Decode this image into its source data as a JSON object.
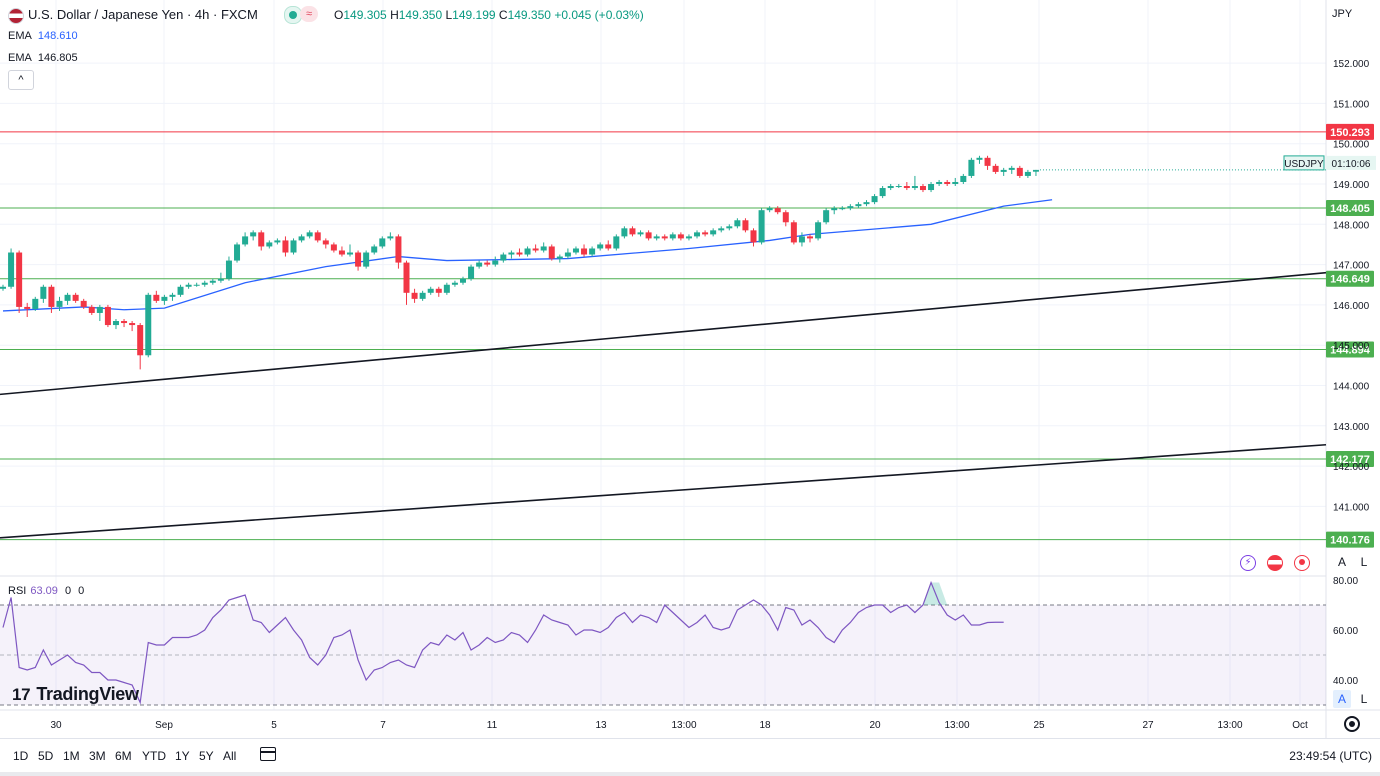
{
  "header": {
    "symbol_title": "U.S. Dollar / Japanese Yen · 4h · FXCM",
    "open_label": "O",
    "open": "149.305",
    "high_label": "H",
    "high": "149.350",
    "low_label": "L",
    "low": "149.199",
    "close_label": "C",
    "close": "149.350",
    "change": "+0.045 (+0.03%)",
    "wave_badge": "≈"
  },
  "indicators": {
    "ema1_label": "EMA",
    "ema1_value": "148.610",
    "ema2_label": "EMA",
    "ema2_value": "146.805",
    "collapse_glyph": "^",
    "rsi_label": "RSI",
    "rsi_value": "63.09",
    "rsi_extra1": "0",
    "rsi_extra2": "0"
  },
  "right_panel": {
    "currency": "JPY",
    "auto_label": "A",
    "log_label": "L"
  },
  "logo": {
    "text": "TradingView",
    "mark": "17"
  },
  "timeframes": [
    "1D",
    "5D",
    "1M",
    "3M",
    "6M",
    "YTD",
    "1Y",
    "5Y",
    "All"
  ],
  "clock": "23:49:54 (UTC)",
  "colors": {
    "up": "#22ab94",
    "down": "#f23645",
    "ema_fast": "#2962ff",
    "ema_slow": "#131722",
    "rsi": "#7e57c2",
    "support": "#4caf50",
    "resistance": "#f23645"
  },
  "chart_data": {
    "type": "candlestick",
    "symbol": "USDJPY",
    "countdown": "01:10:06",
    "last_price": 149.35,
    "price_axis": {
      "min": 139.5,
      "max": 153,
      "ticks": [
        152.0,
        151.0,
        150.0,
        149.0,
        148.0,
        147.0,
        146.0,
        145.0,
        144.0,
        143.0,
        142.0,
        141.0
      ]
    },
    "time_axis": [
      "30",
      "Sep",
      "5",
      "7",
      "11",
      "13",
      "13:00",
      "18",
      "20",
      "13:00",
      "25",
      "27",
      "13:00",
      "Oct"
    ],
    "horizontal_levels": [
      {
        "value": 150.293,
        "label": "150.293",
        "kind": "resistance"
      },
      {
        "value": 148.405,
        "label": "148.405",
        "kind": "support"
      },
      {
        "value": 146.649,
        "label": "146.649",
        "kind": "support"
      },
      {
        "value": 144.894,
        "label": "144.894",
        "kind": "support"
      },
      {
        "value": 142.177,
        "label": "142.177",
        "kind": "support"
      },
      {
        "value": 140.176,
        "label": "140.176",
        "kind": "support"
      }
    ],
    "trendlines": [
      {
        "name": "upper trendline",
        "from": [
          0,
          143.78
        ],
        "to": [
          163,
          146.8
        ]
      },
      {
        "name": "lower trendline",
        "from": [
          0,
          140.22
        ],
        "to": [
          163,
          142.53
        ]
      }
    ],
    "candles": [
      [
        146.4,
        146.5,
        146.35,
        146.45
      ],
      [
        146.45,
        147.4,
        146.4,
        147.3
      ],
      [
        147.3,
        147.35,
        145.8,
        145.95
      ],
      [
        145.95,
        146.05,
        145.7,
        145.9
      ],
      [
        145.9,
        146.2,
        145.85,
        146.15
      ],
      [
        146.15,
        146.5,
        146.05,
        146.45
      ],
      [
        146.45,
        146.5,
        145.8,
        145.95
      ],
      [
        145.95,
        146.2,
        145.85,
        146.1
      ],
      [
        146.1,
        146.3,
        146.0,
        146.25
      ],
      [
        146.25,
        146.3,
        146.05,
        146.1
      ],
      [
        146.1,
        146.15,
        145.9,
        145.95
      ],
      [
        145.95,
        146.0,
        145.75,
        145.8
      ],
      [
        145.8,
        146.0,
        145.6,
        145.95
      ],
      [
        145.95,
        146.0,
        145.45,
        145.5
      ],
      [
        145.5,
        145.65,
        145.4,
        145.6
      ],
      [
        145.6,
        145.65,
        145.45,
        145.55
      ],
      [
        145.55,
        145.6,
        145.35,
        145.5
      ],
      [
        145.5,
        145.55,
        144.4,
        144.75
      ],
      [
        144.75,
        146.3,
        144.7,
        146.25
      ],
      [
        146.25,
        146.35,
        146.05,
        146.1
      ],
      [
        146.1,
        146.25,
        146.0,
        146.2
      ],
      [
        146.2,
        146.3,
        146.1,
        146.25
      ],
      [
        146.25,
        146.5,
        146.2,
        146.45
      ],
      [
        146.45,
        146.55,
        146.4,
        146.5
      ],
      [
        146.5,
        146.55,
        146.45,
        146.5
      ],
      [
        146.5,
        146.6,
        146.45,
        146.55
      ],
      [
        146.55,
        146.65,
        146.5,
        146.6
      ],
      [
        146.6,
        146.8,
        146.55,
        146.65
      ],
      [
        146.65,
        147.2,
        146.6,
        147.1
      ],
      [
        147.1,
        147.55,
        147.05,
        147.5
      ],
      [
        147.5,
        147.8,
        147.45,
        147.7
      ],
      [
        147.7,
        147.85,
        147.6,
        147.8
      ],
      [
        147.8,
        147.85,
        147.35,
        147.45
      ],
      [
        147.45,
        147.6,
        147.4,
        147.55
      ],
      [
        147.55,
        147.65,
        147.5,
        147.6
      ],
      [
        147.6,
        147.7,
        147.2,
        147.3
      ],
      [
        147.3,
        147.65,
        147.25,
        147.6
      ],
      [
        147.6,
        147.75,
        147.55,
        147.7
      ],
      [
        147.7,
        147.85,
        147.65,
        147.8
      ],
      [
        147.8,
        147.85,
        147.55,
        147.6
      ],
      [
        147.6,
        147.65,
        147.4,
        147.5
      ],
      [
        147.5,
        147.55,
        147.3,
        147.35
      ],
      [
        147.35,
        147.45,
        147.2,
        147.25
      ],
      [
        147.25,
        147.5,
        147.2,
        147.3
      ],
      [
        147.3,
        147.35,
        146.85,
        146.95
      ],
      [
        146.95,
        147.35,
        146.9,
        147.3
      ],
      [
        147.3,
        147.5,
        147.25,
        147.45
      ],
      [
        147.45,
        147.7,
        147.4,
        147.65
      ],
      [
        147.65,
        147.8,
        147.6,
        147.7
      ],
      [
        147.7,
        147.75,
        146.9,
        147.05
      ],
      [
        147.05,
        147.1,
        146.0,
        146.3
      ],
      [
        146.3,
        146.4,
        146.05,
        146.15
      ],
      [
        146.15,
        146.35,
        146.1,
        146.3
      ],
      [
        146.3,
        146.45,
        146.25,
        146.4
      ],
      [
        146.4,
        146.45,
        146.2,
        146.3
      ],
      [
        146.3,
        146.55,
        146.25,
        146.5
      ],
      [
        146.5,
        146.6,
        146.45,
        146.55
      ],
      [
        146.55,
        146.7,
        146.5,
        146.65
      ],
      [
        146.65,
        147.0,
        146.6,
        146.95
      ],
      [
        146.95,
        147.1,
        146.9,
        147.05
      ],
      [
        147.05,
        147.1,
        146.95,
        147.0
      ],
      [
        147.0,
        147.2,
        146.95,
        147.1
      ],
      [
        147.1,
        147.3,
        147.05,
        147.25
      ],
      [
        147.25,
        147.35,
        147.15,
        147.3
      ],
      [
        147.3,
        147.4,
        147.2,
        147.25
      ],
      [
        147.25,
        147.45,
        147.2,
        147.4
      ],
      [
        147.4,
        147.5,
        147.3,
        147.35
      ],
      [
        147.35,
        147.55,
        147.3,
        147.45
      ],
      [
        147.45,
        147.5,
        147.1,
        147.15
      ],
      [
        147.15,
        147.25,
        147.05,
        147.2
      ],
      [
        147.2,
        147.4,
        147.15,
        147.3
      ],
      [
        147.3,
        147.45,
        147.25,
        147.4
      ],
      [
        147.4,
        147.5,
        147.2,
        147.25
      ],
      [
        147.25,
        147.45,
        147.2,
        147.4
      ],
      [
        147.4,
        147.55,
        147.35,
        147.5
      ],
      [
        147.5,
        147.6,
        147.35,
        147.4
      ],
      [
        147.4,
        147.75,
        147.35,
        147.7
      ],
      [
        147.7,
        147.95,
        147.65,
        147.9
      ],
      [
        147.9,
        147.95,
        147.7,
        147.75
      ],
      [
        147.75,
        147.85,
        147.7,
        147.8
      ],
      [
        147.8,
        147.85,
        147.6,
        147.65
      ],
      [
        147.65,
        147.75,
        147.6,
        147.7
      ],
      [
        147.7,
        147.75,
        147.6,
        147.65
      ],
      [
        147.65,
        147.8,
        147.6,
        147.75
      ],
      [
        147.75,
        147.8,
        147.6,
        147.65
      ],
      [
        147.65,
        147.75,
        147.6,
        147.7
      ],
      [
        147.7,
        147.85,
        147.65,
        147.8
      ],
      [
        147.8,
        147.85,
        147.7,
        147.75
      ],
      [
        147.75,
        147.9,
        147.7,
        147.85
      ],
      [
        147.85,
        147.95,
        147.8,
        147.9
      ],
      [
        147.9,
        148.0,
        147.85,
        147.95
      ],
      [
        147.95,
        148.15,
        147.9,
        148.1
      ],
      [
        148.1,
        148.15,
        147.8,
        147.85
      ],
      [
        147.85,
        147.9,
        147.45,
        147.55
      ],
      [
        147.55,
        148.4,
        147.5,
        148.35
      ],
      [
        148.35,
        148.45,
        148.3,
        148.4
      ],
      [
        148.4,
        148.45,
        148.25,
        148.3
      ],
      [
        148.3,
        148.35,
        147.95,
        148.05
      ],
      [
        148.05,
        148.1,
        147.5,
        147.55
      ],
      [
        147.55,
        147.8,
        147.45,
        147.7
      ],
      [
        147.7,
        147.75,
        147.55,
        147.65
      ],
      [
        147.65,
        148.1,
        147.6,
        148.05
      ],
      [
        148.05,
        148.4,
        148.0,
        148.35
      ],
      [
        148.35,
        148.45,
        148.25,
        148.4
      ],
      [
        148.4,
        148.45,
        148.35,
        148.4
      ],
      [
        148.4,
        148.5,
        148.35,
        148.45
      ],
      [
        148.45,
        148.55,
        148.4,
        148.5
      ],
      [
        148.5,
        148.6,
        148.45,
        148.55
      ],
      [
        148.55,
        148.75,
        148.5,
        148.7
      ],
      [
        148.7,
        148.95,
        148.65,
        148.9
      ],
      [
        148.9,
        149.0,
        148.85,
        148.95
      ],
      [
        148.95,
        149.0,
        148.9,
        148.95
      ],
      [
        148.95,
        149.05,
        148.85,
        148.9
      ],
      [
        148.9,
        149.2,
        148.85,
        148.95
      ],
      [
        148.95,
        149.0,
        148.8,
        148.85
      ],
      [
        148.85,
        149.05,
        148.8,
        149.0
      ],
      [
        149.0,
        149.1,
        148.95,
        149.05
      ],
      [
        149.05,
        149.1,
        148.95,
        149.0
      ],
      [
        149.0,
        149.15,
        148.95,
        149.05
      ],
      [
        149.05,
        149.25,
        149.0,
        149.2
      ],
      [
        149.2,
        149.65,
        149.15,
        149.6
      ],
      [
        149.6,
        149.7,
        149.5,
        149.65
      ],
      [
        149.65,
        149.7,
        149.35,
        149.45
      ],
      [
        149.45,
        149.5,
        149.25,
        149.3
      ],
      [
        149.3,
        149.4,
        149.2,
        149.35
      ],
      [
        149.35,
        149.45,
        149.25,
        149.4
      ],
      [
        149.4,
        149.45,
        149.15,
        149.2
      ],
      [
        149.2,
        149.35,
        149.15,
        149.3
      ],
      [
        149.305,
        149.35,
        149.199,
        149.35
      ]
    ],
    "ema_fast": {
      "name": "EMA",
      "last": 148.61,
      "points": [
        [
          0,
          145.85
        ],
        [
          10,
          145.95
        ],
        [
          15,
          145.88
        ],
        [
          20,
          145.92
        ],
        [
          30,
          146.55
        ],
        [
          40,
          146.95
        ],
        [
          49,
          147.2
        ],
        [
          55,
          147.1
        ],
        [
          70,
          147.15
        ],
        [
          85,
          147.4
        ],
        [
          95,
          147.6
        ],
        [
          100,
          147.75
        ],
        [
          115,
          148.0
        ],
        [
          124,
          148.45
        ],
        [
          130,
          148.61
        ]
      ]
    },
    "rsi": {
      "value": 63.09,
      "overbought": 70,
      "oversold": 30,
      "midline": 50,
      "ticks": [
        80.0,
        60.0,
        40.0
      ],
      "values": [
        61,
        73,
        45,
        44,
        45,
        52,
        46,
        48,
        50,
        47,
        46,
        43,
        43,
        40,
        40,
        39,
        38,
        31,
        55,
        54,
        54,
        57,
        57,
        57,
        58,
        60,
        65,
        68,
        72,
        73,
        74,
        64,
        63,
        59,
        62,
        65,
        60,
        56,
        49,
        46,
        50,
        57,
        58,
        60,
        48,
        40,
        44,
        45,
        47,
        48,
        46,
        45,
        52,
        55,
        54,
        58,
        56,
        59,
        52,
        54,
        57,
        55,
        56,
        59,
        58,
        55,
        60,
        66,
        64,
        63,
        62,
        58,
        60,
        60,
        59,
        61,
        65,
        67,
        63,
        66,
        65,
        63,
        70,
        67,
        64,
        61,
        63,
        66,
        61,
        60,
        61,
        68,
        70,
        72,
        70,
        66,
        60,
        69,
        68,
        62,
        64,
        61,
        57,
        55,
        60,
        63,
        67,
        69,
        70,
        70,
        67,
        69,
        70,
        67,
        70,
        79,
        71,
        66,
        64,
        66,
        62,
        62,
        63,
        63.09,
        63.09
      ]
    }
  }
}
